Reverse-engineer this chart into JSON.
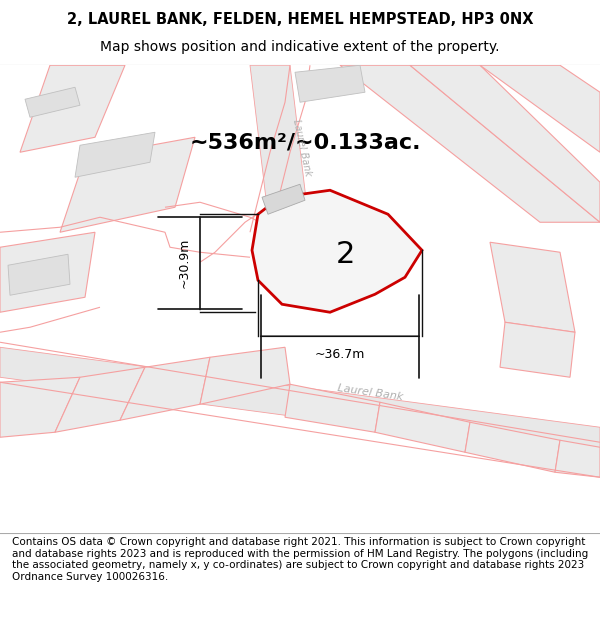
{
  "title_line1": "2, LAUREL BANK, FELDEN, HEMEL HEMPSTEAD, HP3 0NX",
  "title_line2": "Map shows position and indicative extent of the property.",
  "footer_text": "Contains OS data © Crown copyright and database right 2021. This information is subject to Crown copyright and database rights 2023 and is reproduced with the permission of HM Land Registry. The polygons (including the associated geometry, namely x, y co-ordinates) are subject to Crown copyright and database rights 2023 Ordnance Survey 100026316.",
  "area_label": "~536m²/~0.133ac.",
  "property_number": "2",
  "dim_width": "~36.7m",
  "dim_height": "~30.9m",
  "road_label_bottom": "Laurel Bank",
  "road_label_top": "Laurel Bank",
  "map_bg": "#ffffff",
  "plot_fill": "#f2f2f2",
  "plot_edge_color": "#cc0000",
  "road_fill": "#e8e8e8",
  "road_edge": "#f5a0a0",
  "parcel_edge": "#f5a0a0",
  "parcel_fill": "#ebebeb",
  "dim_color": "#111111",
  "title_fontsize": 10.5,
  "footer_fontsize": 7.5,
  "area_fontsize": 16,
  "label_fontsize": 8,
  "road_label_color": "#b0b0b0",
  "number_fontsize": 22
}
